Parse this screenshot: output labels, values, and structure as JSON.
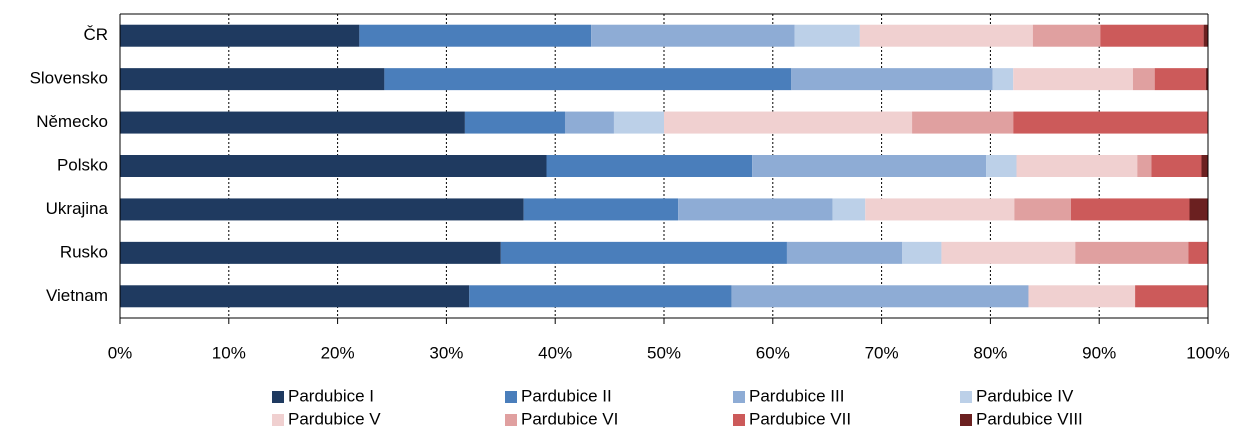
{
  "chart_data": {
    "type": "stacked-bar-horizontal",
    "categories": [
      "ČR",
      "Slovensko",
      "Německo",
      "Polsko",
      "Ukrajina",
      "Rusko",
      "Vietnam"
    ],
    "series": [
      {
        "name": "Pardubice I",
        "color": "#1f3a60",
        "values": [
          22.0,
          24.3,
          31.7,
          39.2,
          37.1,
          35.0,
          32.1
        ]
      },
      {
        "name": "Pardubice II",
        "color": "#4a7ebb",
        "values": [
          21.3,
          37.4,
          9.2,
          18.9,
          14.2,
          26.3,
          24.1
        ]
      },
      {
        "name": "Pardubice III",
        "color": "#8eacd5",
        "values": [
          18.7,
          18.5,
          4.5,
          21.5,
          14.2,
          10.6,
          27.3
        ]
      },
      {
        "name": "Pardubice IV",
        "color": "#bcd0e8",
        "values": [
          6.0,
          1.9,
          4.6,
          2.8,
          3.0,
          3.6,
          0
        ]
      },
      {
        "name": "Pardubice V",
        "color": "#f0d0d0",
        "values": [
          15.9,
          11.0,
          22.8,
          11.1,
          13.7,
          12.3,
          9.8
        ]
      },
      {
        "name": "Pardubice VI",
        "color": "#e0a0a0",
        "values": [
          6.2,
          2.0,
          9.3,
          1.3,
          5.2,
          10.4,
          0
        ]
      },
      {
        "name": "Pardubice VII",
        "color": "#cc5a5a",
        "values": [
          9.5,
          4.7,
          17.9,
          4.6,
          10.9,
          1.8,
          6.7
        ]
      },
      {
        "name": "Pardubice VIII",
        "color": "#6b2020",
        "values": [
          0.4,
          0.2,
          0,
          0.6,
          1.7,
          0,
          0
        ]
      }
    ],
    "xlim": [
      0,
      100
    ],
    "xticks": [
      {
        "value": 0,
        "label": "0%"
      },
      {
        "value": 10,
        "label": "10%"
      },
      {
        "value": 20,
        "label": "20%"
      },
      {
        "value": 30,
        "label": "30%"
      },
      {
        "value": 40,
        "label": "40%"
      },
      {
        "value": 50,
        "label": "50%"
      },
      {
        "value": 60,
        "label": "60%"
      },
      {
        "value": 70,
        "label": "70%"
      },
      {
        "value": 80,
        "label": "80%"
      },
      {
        "value": 90,
        "label": "90%"
      },
      {
        "value": 100,
        "label": "100%"
      }
    ],
    "grid": true
  }
}
